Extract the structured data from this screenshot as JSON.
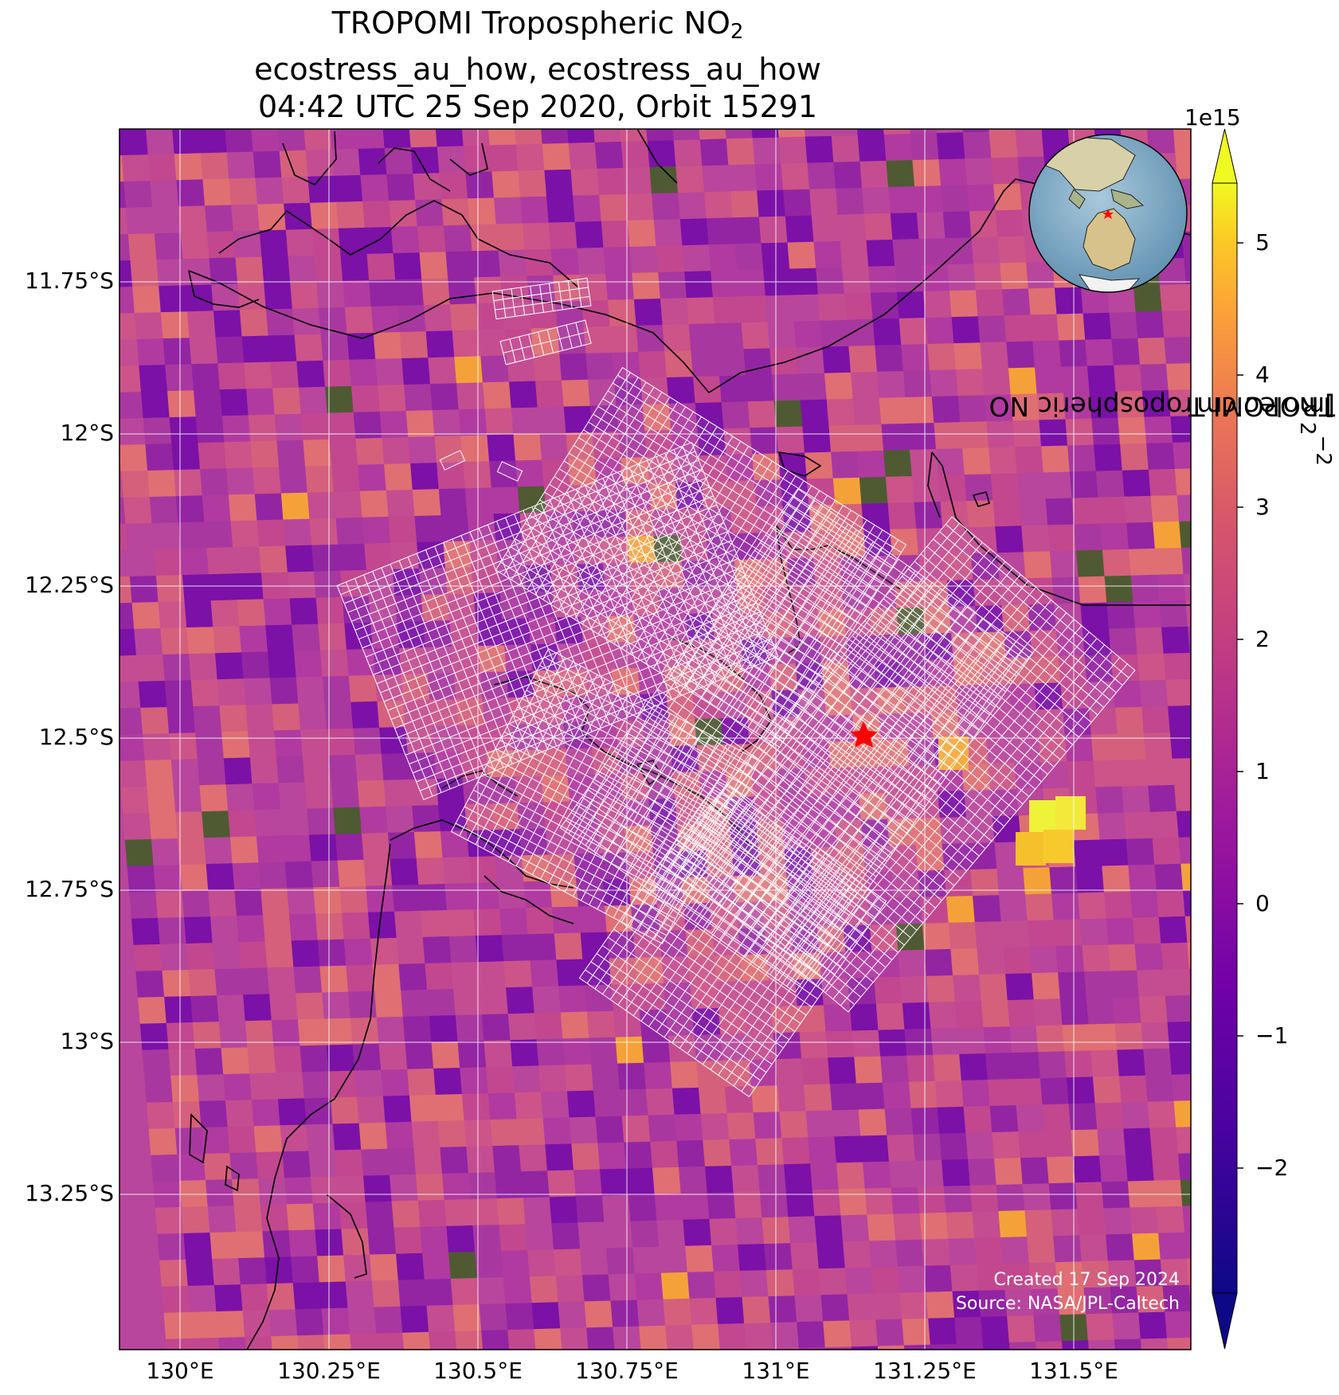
{
  "title": {
    "line1_main": "TROPOMI Tropospheric NO",
    "line1_sub": "2",
    "line2": "ecostress_au_how, ecostress_au_how",
    "line3": "04:42 UTC 25 Sep 2020, Orbit 15291"
  },
  "map": {
    "lon_ticks": [
      "130°E",
      "130.25°E",
      "130.5°E",
      "130.75°E",
      "131°E",
      "131.25°E",
      "131.5°E"
    ],
    "lat_ticks": [
      "11.75°S",
      "12°S",
      "12.25°S",
      "12.5°S",
      "12.75°S",
      "13°S",
      "13.25°S"
    ],
    "lon_range": [
      129.9,
      131.7
    ],
    "lat_range": [
      -11.5,
      -13.5
    ],
    "target_marker": {
      "icon": "red-star-icon",
      "color": "#ff0000",
      "lon": 131.15,
      "lat": -12.49
    },
    "background_color": "#b8469c",
    "grid_color": "#ffffff",
    "swath_outline_color": "#ffffff",
    "coastline_color": "#000000"
  },
  "colorbar": {
    "exponent": "1e15",
    "label_main": "TROPOMI Tropospheric NO",
    "label_sub": "2",
    "label_units": " [molec cm",
    "label_sup": "−2",
    "label_end": "]",
    "ticks": [
      "5",
      "4",
      "3",
      "2",
      "1",
      "0",
      "−1",
      "−2"
    ],
    "range": [
      -3,
      5.7
    ],
    "colormap": "plasma",
    "extend": "both"
  },
  "inset_globe": {
    "icon": "globe-inset-icon",
    "centered_on": "Australia",
    "marker_color": "#ff0000"
  },
  "credits": {
    "created": "Created 17 Sep 2024",
    "source": "Source: NASA/JPL-Caltech"
  }
}
